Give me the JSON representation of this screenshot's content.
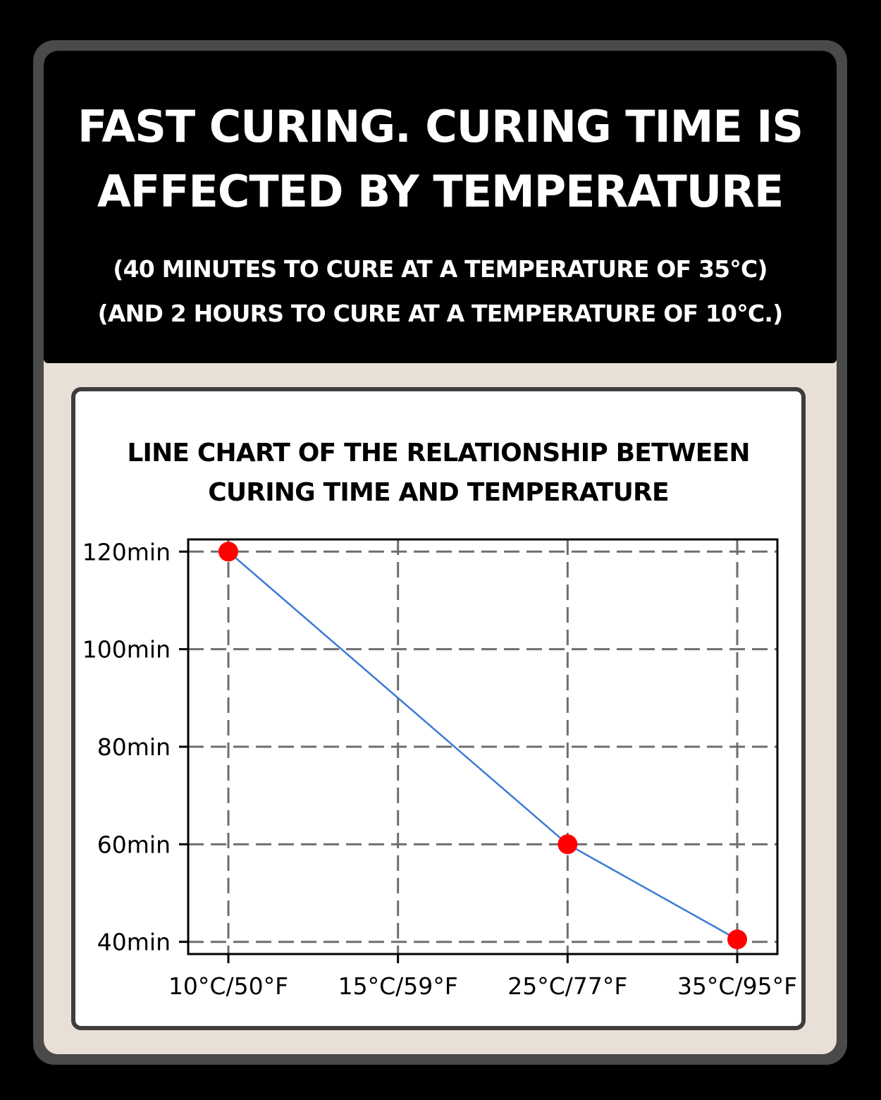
{
  "header": {
    "headline_line1": "FAST CURING. CURING TIME IS",
    "headline_line2": "AFFECTED BY TEMPERATURE",
    "note_line1": "(40 MINUTES TO CURE AT A TEMPERATURE OF 35°C)",
    "note_line2": "(AND 2 HOURS TO CURE AT A TEMPERATURE OF 10°C.)"
  },
  "chart_data": {
    "type": "line",
    "title_line1": "LINE CHART OF THE RELATIONSHIP BETWEEN",
    "title_line2": "CURING TIME AND TEMPERATURE",
    "categories": [
      "10°C/50°F",
      "15°C/59°F",
      "25°C/77°F",
      "35°C/95°F"
    ],
    "y_ticks": [
      40,
      60,
      80,
      100,
      120
    ],
    "y_tick_labels": [
      "40min",
      "60min",
      "80min",
      "100min",
      "120min"
    ],
    "ylim": [
      37.5,
      122.5
    ],
    "grid": true,
    "line_color": "#3a7bd5",
    "marker_color": "#ff0000",
    "series": [
      {
        "points": [
          {
            "x": "10°C/50°F",
            "y": 120
          },
          {
            "x": "25°C/77°F",
            "y": 60
          },
          {
            "x": "35°C/95°F",
            "y": 40.5
          }
        ]
      }
    ]
  }
}
